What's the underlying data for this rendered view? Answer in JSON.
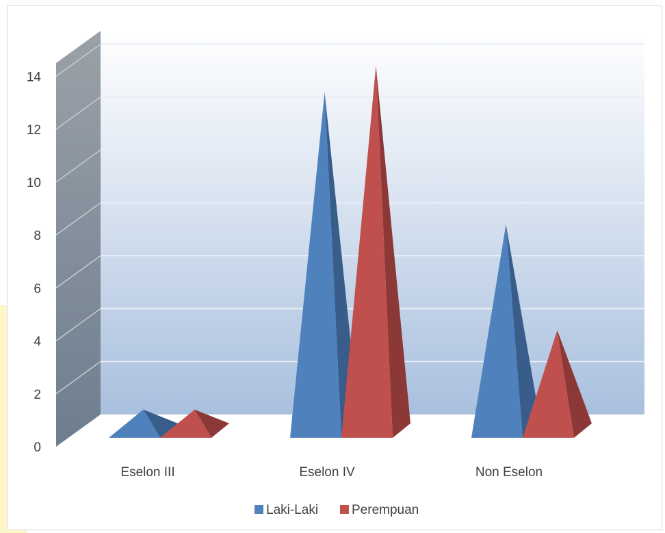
{
  "chart_data": {
    "type": "bar",
    "style": "3d-pyramid",
    "categories": [
      "Eselon III",
      "Eselon IV",
      "Non Eselon"
    ],
    "series": [
      {
        "name": "Laki-Laki",
        "values": [
          1,
          13,
          8
        ],
        "color": "#4f81bd",
        "shade": "#385d8a"
      },
      {
        "name": "Perempuan",
        "values": [
          1,
          14,
          4
        ],
        "color": "#c0504d",
        "shade": "#8c3836"
      }
    ],
    "yticks": [
      0,
      2,
      4,
      6,
      8,
      10,
      12,
      14
    ],
    "ylim": [
      0,
      14
    ],
    "grid": true,
    "legend": "bottom"
  }
}
